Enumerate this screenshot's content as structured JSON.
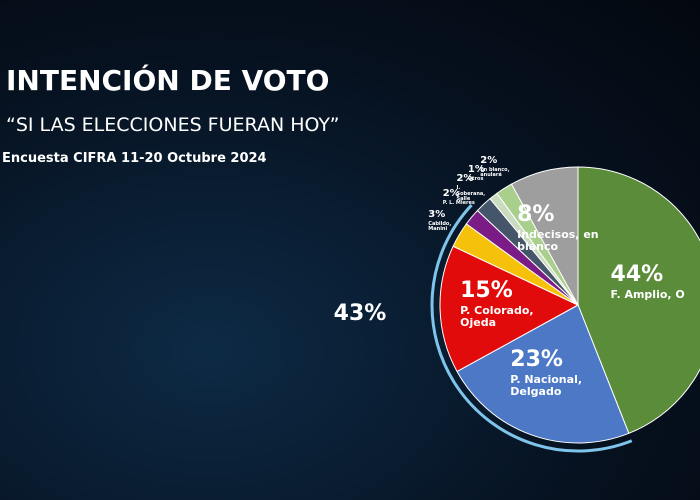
{
  "chart_data": {
    "type": "pie",
    "title": "INTENCIÓN DE VOTO",
    "subtitle": "“SI LAS ELECCIONES FUERAN HOY”",
    "source": "Encuesta CIFRA 11-20 Octubre 2024",
    "categories": [
      "F. Amplio, O",
      "P. Nacional, Delgado",
      "P. Colorado, Ojeda",
      "Cabildo, Manini",
      "P. L. Mieres",
      "I. Soberana, Salle",
      "Otros",
      "En blanco, anulará",
      "Indecisos, en blanco"
    ],
    "values": [
      44,
      23,
      15,
      3,
      2,
      2,
      1,
      2,
      8
    ],
    "value_labels": [
      "44%",
      "23%",
      "15%",
      "3%",
      "2%",
      "2%",
      "1%",
      "2%",
      "8%"
    ],
    "colors": [
      "#5b8c3a",
      "#4c78c6",
      "#e10b0b",
      "#f5c10a",
      "#7a1b86",
      "#46566a",
      "#c9dcc0",
      "#a9cf8c",
      "#9e9e9e"
    ],
    "annotation": {
      "value": 43,
      "label": "43%"
    }
  }
}
